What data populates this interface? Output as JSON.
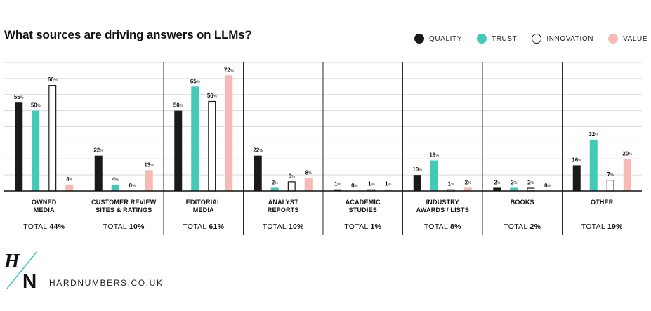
{
  "colors": {
    "quality": "#1a1a1a",
    "trust": "#43c9b8",
    "innovation": "#ffffff",
    "innovation_stroke": "#1a1a1a",
    "value": "#f6b9b4",
    "grid": "#d9d9d9",
    "accent": "#43c9b8"
  },
  "legend": [
    {
      "key": "quality",
      "label": "QUALITY"
    },
    {
      "key": "trust",
      "label": "TRUST"
    },
    {
      "key": "innovation",
      "label": "INNOVATION"
    },
    {
      "key": "value",
      "label": "VALUE"
    }
  ],
  "brand": {
    "logo_letters": [
      "H",
      "N"
    ],
    "url": "HARDNUMBERS.CO.UK"
  },
  "chart_data": {
    "type": "bar",
    "title": "What sources are driving answers on LLMs?",
    "value_suffix": "%",
    "total_prefix": "TOTAL",
    "ylim": [
      0,
      80
    ],
    "grid": true,
    "legend_position": "top-right",
    "categories": [
      {
        "label": [
          "OWNED",
          "MEDIA"
        ],
        "total": "44%"
      },
      {
        "label": [
          "CUSTOMER REVIEW",
          "SITES & RATINGS"
        ],
        "total": "10%"
      },
      {
        "label": [
          "EDITORIAL",
          "MEDIA"
        ],
        "total": "61%"
      },
      {
        "label": [
          "ANALYST",
          "REPORTS"
        ],
        "total": "10%"
      },
      {
        "label": [
          "ACADEMIC",
          "STUDIES"
        ],
        "total": "1%"
      },
      {
        "label": [
          "INDUSTRY",
          "AWARDS / LISTS"
        ],
        "total": "8%"
      },
      {
        "label": [
          "BOOKS"
        ],
        "total": "2%"
      },
      {
        "label": [
          "OTHER"
        ],
        "total": "19%"
      }
    ],
    "series": [
      {
        "key": "quality",
        "name": "QUALITY",
        "values": [
          55,
          22,
          50,
          22,
          1,
          10,
          2,
          16
        ]
      },
      {
        "key": "trust",
        "name": "TRUST",
        "values": [
          50,
          4,
          65,
          2,
          0,
          19,
          2,
          32
        ]
      },
      {
        "key": "innovation",
        "name": "INNOVATION",
        "values": [
          66,
          0,
          56,
          6,
          1,
          1,
          2,
          7
        ]
      },
      {
        "key": "value",
        "name": "VALUE",
        "values": [
          4,
          13,
          72,
          8,
          1,
          2,
          0,
          20
        ]
      }
    ]
  }
}
